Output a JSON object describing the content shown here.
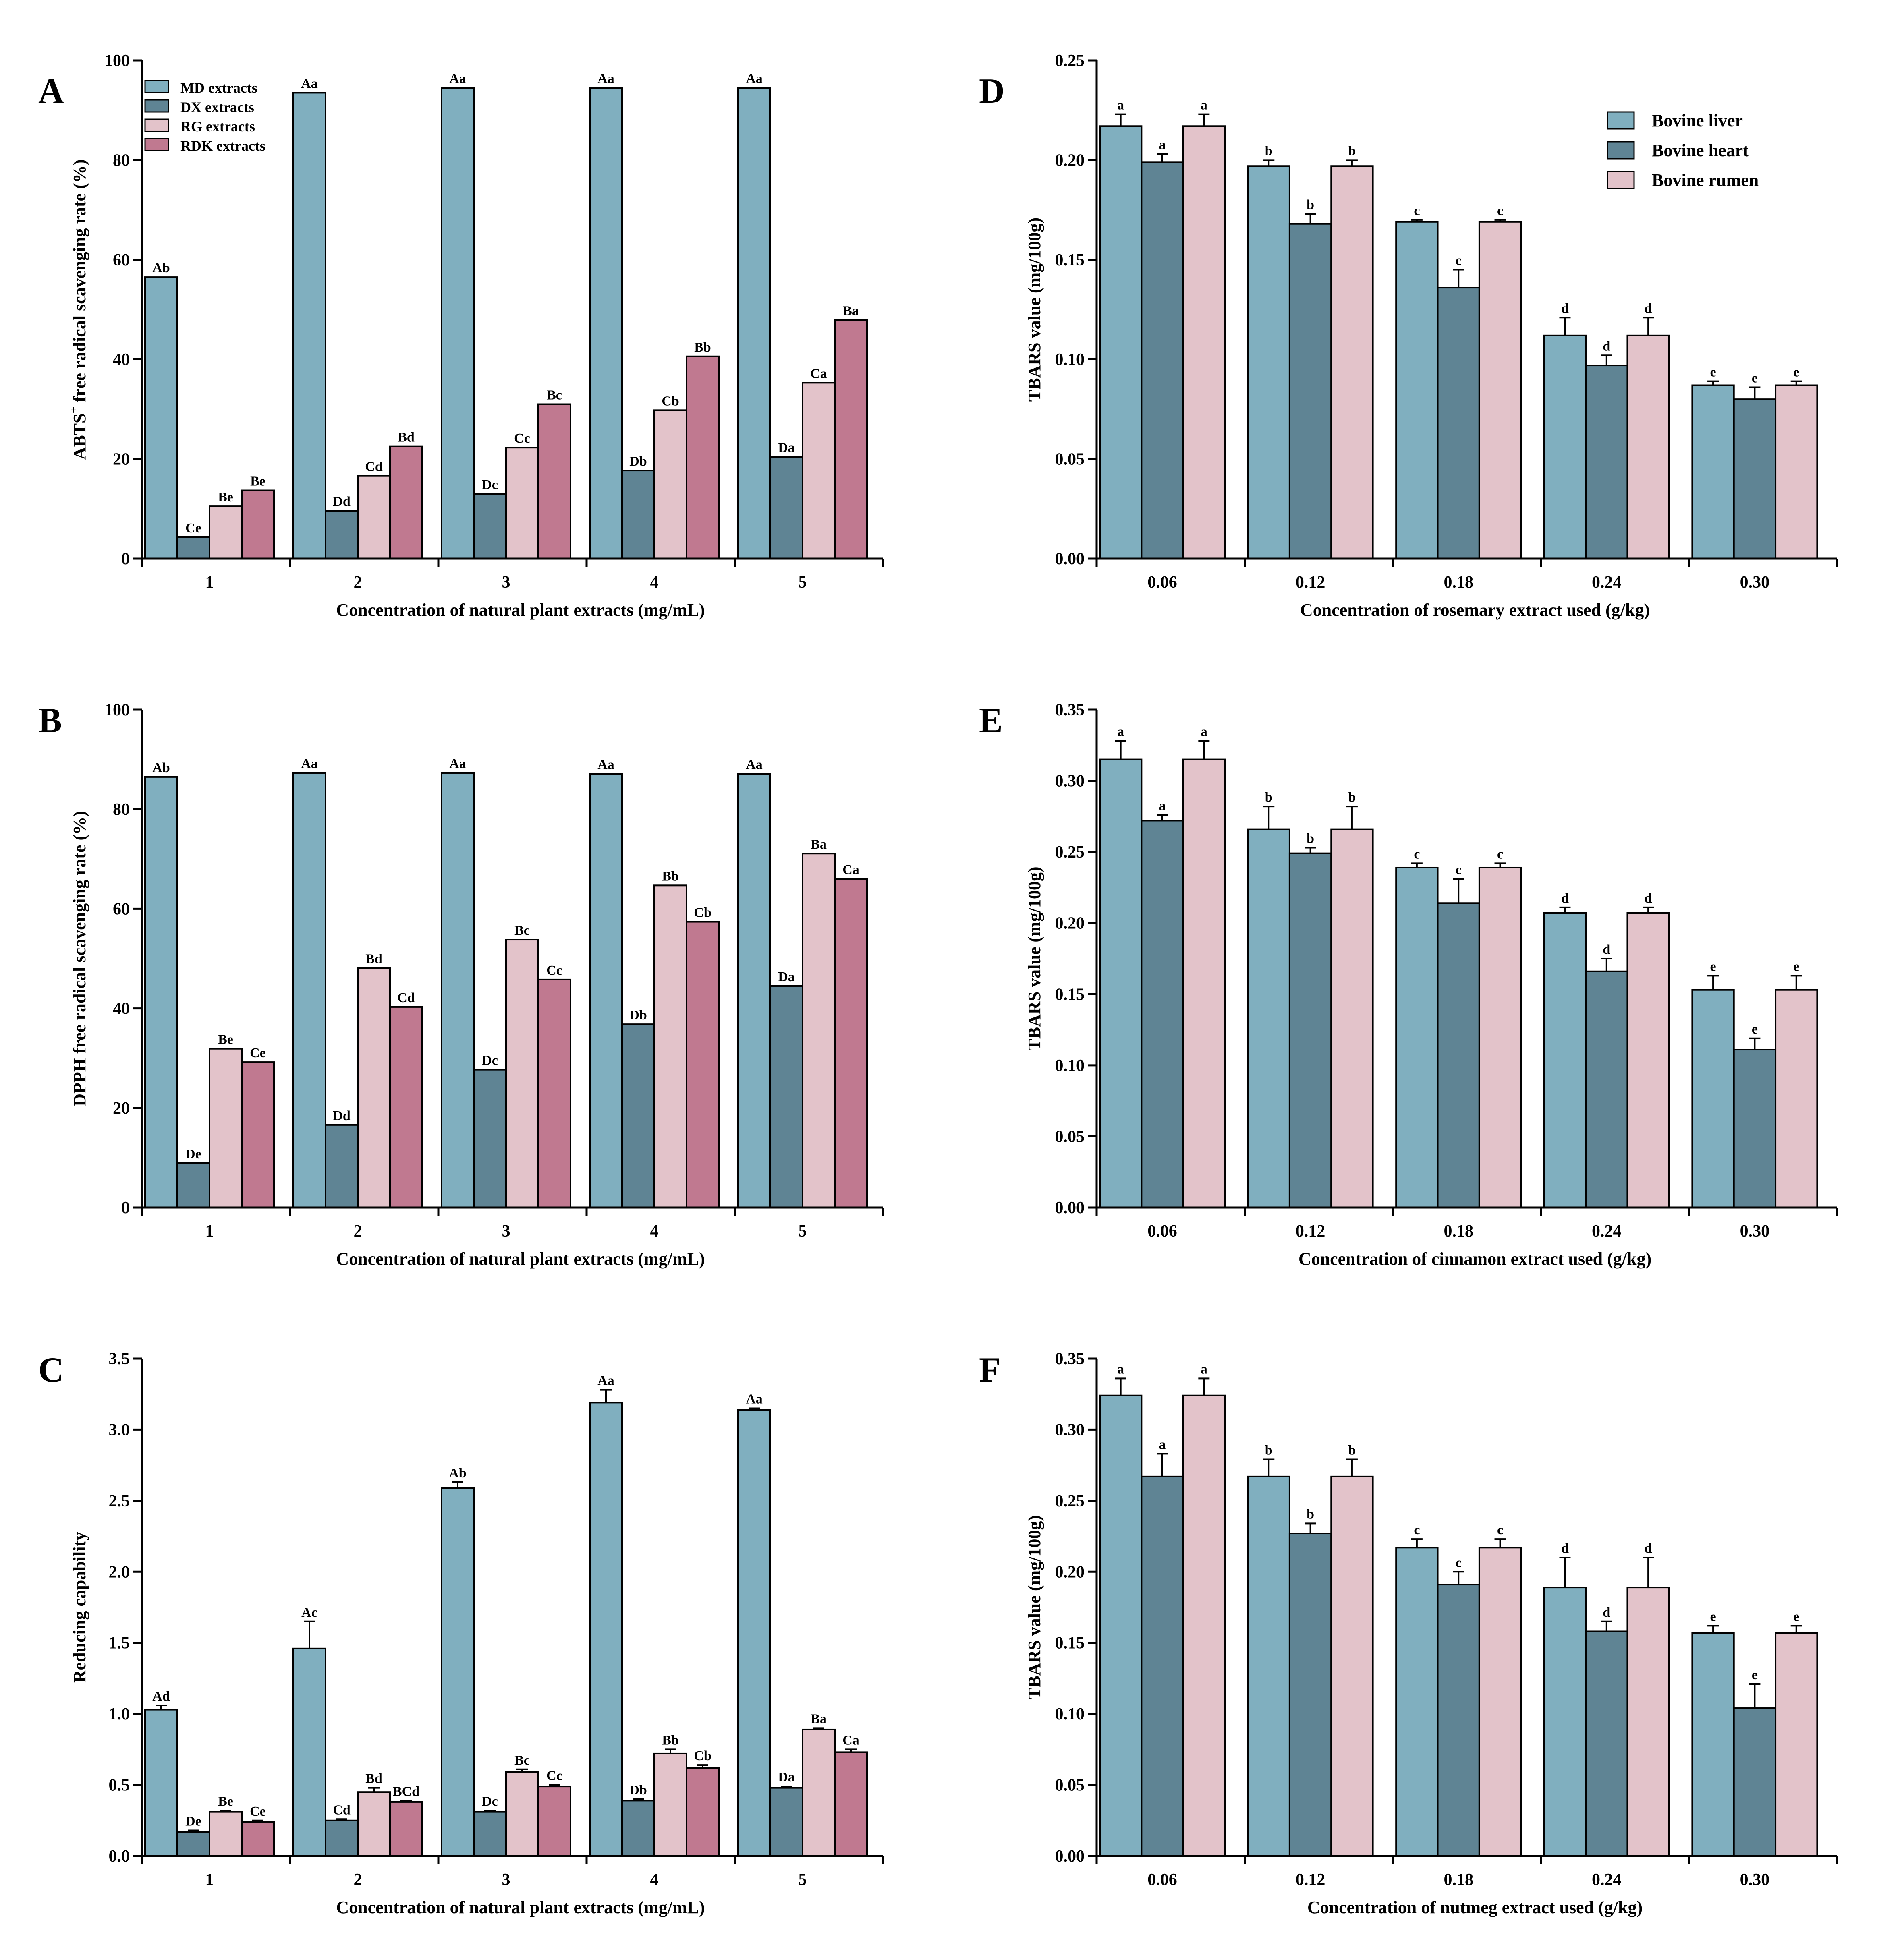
{
  "colors": {
    "md": "#80afbf",
    "dx": "#5f8494",
    "rg": "#e3c3ca",
    "rdk": "#c07990",
    "liver": "#80afbf",
    "heart": "#5f8494",
    "rumen": "#e3c3ca"
  },
  "chart_data": [
    {
      "panel": "A",
      "type": "bar",
      "xlabel": "Concentration of natural plant extracts (mg/mL)",
      "ylabel_main": "ABTS",
      "ylabel_sup": "+",
      "ylabel_rest": " free radical scavenging rate (%)",
      "ylim": [
        0,
        100
      ],
      "yticks": [
        "0",
        "20",
        "40",
        "60",
        "80",
        "100"
      ],
      "categories": [
        "1",
        "2",
        "3",
        "4",
        "5"
      ],
      "legend_position": "top-left",
      "series": [
        {
          "name": "MD extracts",
          "color_key": "md",
          "values": [
            56.5,
            93.5,
            94.5,
            94.5,
            94.5
          ],
          "labels": [
            "Ab",
            "Aa",
            "Aa",
            "Aa",
            "Aa"
          ]
        },
        {
          "name": "DX extracts",
          "color_key": "dx",
          "values": [
            4.3,
            9.6,
            13.0,
            17.7,
            20.4
          ],
          "labels": [
            "Ce",
            "Dd",
            "Dc",
            "Db",
            "Da"
          ]
        },
        {
          "name": "RG extracts",
          "color_key": "rg",
          "values": [
            10.5,
            16.6,
            22.3,
            29.8,
            35.3
          ],
          "labels": [
            "Be",
            "Cd",
            "Cc",
            "Cb",
            "Ca"
          ]
        },
        {
          "name": "RDK extracts",
          "color_key": "rdk",
          "values": [
            13.7,
            22.5,
            31.0,
            40.6,
            47.9
          ],
          "labels": [
            "Be",
            "Bd",
            "Bc",
            "Bb",
            "Ba"
          ]
        }
      ]
    },
    {
      "panel": "B",
      "type": "bar",
      "xlabel": "Concentration of natural plant extracts (mg/mL)",
      "ylabel_main": "DPPH free radical scavenging rate (%)",
      "ylim": [
        0,
        100
      ],
      "yticks": [
        "0",
        "20",
        "40",
        "60",
        "80",
        "100"
      ],
      "categories": [
        "1",
        "2",
        "3",
        "4",
        "5"
      ],
      "series": [
        {
          "name": "MD extracts",
          "color_key": "md",
          "values": [
            86.5,
            87.3,
            87.3,
            87.1,
            87.1
          ],
          "labels": [
            "Ab",
            "Aa",
            "Aa",
            "Aa",
            "Aa"
          ]
        },
        {
          "name": "DX extracts",
          "color_key": "dx",
          "values": [
            8.9,
            16.6,
            27.7,
            36.8,
            44.5
          ],
          "labels": [
            "De",
            "Dd",
            "Dc",
            "Db",
            "Da"
          ]
        },
        {
          "name": "RG extracts",
          "color_key": "rg",
          "values": [
            31.9,
            48.1,
            53.8,
            64.7,
            71.1
          ],
          "labels": [
            "Be",
            "Bd",
            "Bc",
            "Bb",
            "Ba"
          ]
        },
        {
          "name": "RDK extracts",
          "color_key": "rdk",
          "values": [
            29.2,
            40.3,
            45.8,
            57.4,
            66.0
          ],
          "labels": [
            "Ce",
            "Cd",
            "Cc",
            "Cb",
            "Ca"
          ]
        }
      ]
    },
    {
      "panel": "C",
      "type": "bar",
      "xlabel": "Concentration of natural plant extracts (mg/mL)",
      "ylabel_main": "Reducing capability",
      "ylim": [
        0,
        3.5
      ],
      "yticks": [
        "0.0",
        "0.5",
        "1.0",
        "1.5",
        "2.0",
        "2.5",
        "3.0",
        "3.5"
      ],
      "categories": [
        "1",
        "2",
        "3",
        "4",
        "5"
      ],
      "series": [
        {
          "name": "MD extracts",
          "color_key": "md",
          "values": [
            1.03,
            1.46,
            2.59,
            3.19,
            3.14
          ],
          "errors": [
            0.03,
            0.19,
            0.04,
            0.09,
            0.01
          ],
          "labels": [
            "Ad",
            "Ac",
            "Ab",
            "Aa",
            "Aa"
          ]
        },
        {
          "name": "DX extracts",
          "color_key": "dx",
          "values": [
            0.17,
            0.25,
            0.31,
            0.39,
            0.48
          ],
          "errors": [
            0.01,
            0.01,
            0.01,
            0.01,
            0.01
          ],
          "labels": [
            "De",
            "Cd",
            "Dc",
            "Db",
            "Da"
          ]
        },
        {
          "name": "RG extracts",
          "color_key": "rg",
          "values": [
            0.31,
            0.45,
            0.59,
            0.72,
            0.89
          ],
          "errors": [
            0.01,
            0.03,
            0.02,
            0.03,
            0.01
          ],
          "labels": [
            "Be",
            "Bd",
            "Bc",
            "Bb",
            "Ba"
          ]
        },
        {
          "name": "RDK extracts",
          "color_key": "rdk",
          "values": [
            0.24,
            0.38,
            0.49,
            0.62,
            0.73
          ],
          "errors": [
            0.01,
            0.01,
            0.01,
            0.02,
            0.02
          ],
          "labels": [
            "Ce",
            "BCd",
            "Cc",
            "Cb",
            "Ca"
          ]
        }
      ]
    },
    {
      "panel": "D",
      "type": "bar",
      "xlabel": "Concentration of rosemary extract used (g/kg)",
      "ylabel_main": "TBARS value (mg/100g)",
      "ylim": [
        0,
        0.25
      ],
      "yticks": [
        "0.00",
        "0.05",
        "0.10",
        "0.15",
        "0.20",
        "0.25"
      ],
      "categories": [
        "0.06",
        "0.12",
        "0.18",
        "0.24",
        "0.30"
      ],
      "legend_position": "top-right",
      "series": [
        {
          "name": "Bovine liver",
          "color_key": "liver",
          "values": [
            0.217,
            0.197,
            0.169,
            0.112,
            0.087
          ],
          "errors": [
            0.006,
            0.003,
            0.001,
            0.009,
            0.002
          ],
          "labels": [
            "a",
            "b",
            "c",
            "d",
            "e"
          ]
        },
        {
          "name": "Bovine heart",
          "color_key": "heart",
          "values": [
            0.199,
            0.168,
            0.136,
            0.097,
            0.08
          ],
          "errors": [
            0.004,
            0.005,
            0.009,
            0.005,
            0.006
          ],
          "labels": [
            "a",
            "b",
            "c",
            "d",
            "e"
          ]
        },
        {
          "name": "Bovine rumen",
          "color_key": "rumen",
          "values": [
            0.217,
            0.197,
            0.169,
            0.112,
            0.087
          ],
          "errors": [
            0.006,
            0.003,
            0.001,
            0.009,
            0.002
          ],
          "labels": [
            "a",
            "b",
            "c",
            "d",
            "e"
          ]
        }
      ]
    },
    {
      "panel": "E",
      "type": "bar",
      "xlabel": "Concentration of cinnamon extract used (g/kg)",
      "ylabel_main": "TBARS value (mg/100g)",
      "ylim": [
        0,
        0.35
      ],
      "yticks": [
        "0.00",
        "0.05",
        "0.10",
        "0.15",
        "0.20",
        "0.25",
        "0.30",
        "0.35"
      ],
      "categories": [
        "0.06",
        "0.12",
        "0.18",
        "0.24",
        "0.30"
      ],
      "series": [
        {
          "name": "Bovine liver",
          "color_key": "liver",
          "values": [
            0.315,
            0.266,
            0.239,
            0.207,
            0.153
          ],
          "errors": [
            0.013,
            0.016,
            0.003,
            0.004,
            0.01
          ],
          "labels": [
            "a",
            "b",
            "c",
            "d",
            "e"
          ]
        },
        {
          "name": "Bovine heart",
          "color_key": "heart",
          "values": [
            0.272,
            0.249,
            0.214,
            0.166,
            0.111
          ],
          "errors": [
            0.004,
            0.004,
            0.017,
            0.009,
            0.008
          ],
          "labels": [
            "a",
            "b",
            "c",
            "d",
            "e"
          ]
        },
        {
          "name": "Bovine rumen",
          "color_key": "rumen",
          "values": [
            0.315,
            0.266,
            0.239,
            0.207,
            0.153
          ],
          "errors": [
            0.013,
            0.016,
            0.003,
            0.004,
            0.01
          ],
          "labels": [
            "a",
            "b",
            "c",
            "d",
            "e"
          ]
        }
      ]
    },
    {
      "panel": "F",
      "type": "bar",
      "xlabel": "Concentration of nutmeg extract used (g/kg)",
      "ylabel_main": "TBARS value (mg/100g)",
      "ylim": [
        0,
        0.35
      ],
      "yticks": [
        "0.00",
        "0.05",
        "0.10",
        "0.15",
        "0.20",
        "0.25",
        "0.30",
        "0.35"
      ],
      "categories": [
        "0.06",
        "0.12",
        "0.18",
        "0.24",
        "0.30"
      ],
      "series": [
        {
          "name": "Bovine liver",
          "color_key": "liver",
          "values": [
            0.324,
            0.267,
            0.217,
            0.189,
            0.157
          ],
          "errors": [
            0.012,
            0.012,
            0.006,
            0.021,
            0.005
          ],
          "labels": [
            "a",
            "b",
            "c",
            "d",
            "e"
          ]
        },
        {
          "name": "Bovine heart",
          "color_key": "heart",
          "values": [
            0.267,
            0.227,
            0.191,
            0.158,
            0.104
          ],
          "errors": [
            0.016,
            0.007,
            0.009,
            0.007,
            0.017
          ],
          "labels": [
            "a",
            "b",
            "c",
            "d",
            "e"
          ]
        },
        {
          "name": "Bovine rumen",
          "color_key": "rumen",
          "values": [
            0.324,
            0.267,
            0.217,
            0.189,
            0.157
          ],
          "errors": [
            0.012,
            0.012,
            0.006,
            0.021,
            0.005
          ],
          "labels": [
            "a",
            "b",
            "c",
            "d",
            "e"
          ]
        }
      ]
    }
  ]
}
